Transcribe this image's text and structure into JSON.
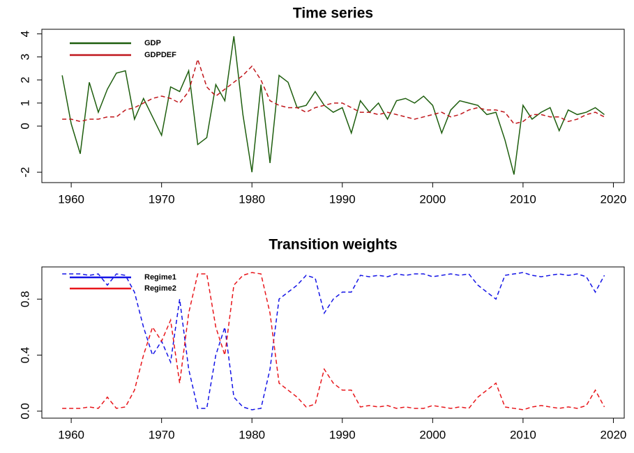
{
  "chart_data": [
    {
      "type": "line",
      "title": "Time series",
      "x": [
        1959,
        1960,
        1961,
        1962,
        1963,
        1964,
        1965,
        1966,
        1967,
        1968,
        1969,
        1970,
        1971,
        1972,
        1973,
        1974,
        1975,
        1976,
        1977,
        1978,
        1979,
        1980,
        1981,
        1982,
        1983,
        1984,
        1985,
        1986,
        1987,
        1988,
        1989,
        1990,
        1991,
        1992,
        1993,
        1994,
        1995,
        1996,
        1997,
        1998,
        1999,
        2000,
        2001,
        2002,
        2003,
        2004,
        2005,
        2006,
        2007,
        2008,
        2009,
        2010,
        2011,
        2012,
        2013,
        2014,
        2015,
        2016,
        2017,
        2018,
        2019
      ],
      "xlim": [
        1956.75,
        2021.2
      ],
      "xticks": [
        1960,
        1970,
        1980,
        1990,
        2000,
        2010,
        2020
      ],
      "ylim": [
        -2.45,
        4.2
      ],
      "yticks": [
        -2,
        0,
        1,
        2,
        3,
        4
      ],
      "legend": "top-left",
      "series": [
        {
          "name": "GDP",
          "color": "#1e5e0e",
          "line_style": "solid",
          "values": [
            2.2,
            0.1,
            -1.2,
            1.9,
            0.6,
            1.6,
            2.3,
            2.4,
            0.3,
            1.2,
            0.4,
            -0.4,
            1.7,
            1.5,
            2.4,
            -0.8,
            -0.5,
            1.8,
            1.1,
            3.9,
            0.5,
            -2.0,
            1.8,
            -1.6,
            2.2,
            1.9,
            0.8,
            0.9,
            1.5,
            0.9,
            0.6,
            0.8,
            -0.3,
            1.1,
            0.6,
            1.0,
            0.3,
            1.1,
            1.2,
            1.0,
            1.3,
            0.9,
            -0.3,
            0.7,
            1.1,
            1.0,
            0.9,
            0.5,
            0.6,
            -0.6,
            -2.1,
            0.9,
            0.3,
            0.6,
            0.8,
            -0.2,
            0.7,
            0.5,
            0.6,
            0.8,
            0.5
          ]
        },
        {
          "name": "GDPDEF",
          "color": "#c0161b",
          "line_style": "dashed",
          "values": [
            0.3,
            0.3,
            0.2,
            0.3,
            0.3,
            0.4,
            0.4,
            0.7,
            0.8,
            1.0,
            1.2,
            1.3,
            1.2,
            1.0,
            1.5,
            2.9,
            1.7,
            1.3,
            1.6,
            1.9,
            2.2,
            2.6,
            2.0,
            1.1,
            0.9,
            0.8,
            0.8,
            0.6,
            0.8,
            0.9,
            1.0,
            1.0,
            0.8,
            0.6,
            0.6,
            0.5,
            0.6,
            0.5,
            0.4,
            0.3,
            0.4,
            0.5,
            0.6,
            0.4,
            0.5,
            0.7,
            0.8,
            0.7,
            0.7,
            0.6,
            0.1,
            0.2,
            0.5,
            0.5,
            0.4,
            0.4,
            0.2,
            0.3,
            0.5,
            0.6,
            0.4
          ]
        }
      ]
    },
    {
      "type": "line",
      "title": "Transition weights",
      "x": [
        1959,
        1960,
        1961,
        1962,
        1963,
        1964,
        1965,
        1966,
        1967,
        1968,
        1969,
        1970,
        1971,
        1972,
        1973,
        1974,
        1975,
        1976,
        1977,
        1978,
        1979,
        1980,
        1981,
        1982,
        1983,
        1984,
        1985,
        1986,
        1987,
        1988,
        1989,
        1990,
        1991,
        1992,
        1993,
        1994,
        1995,
        1996,
        1997,
        1998,
        1999,
        2000,
        2001,
        2002,
        2003,
        2004,
        2005,
        2006,
        2007,
        2008,
        2009,
        2010,
        2011,
        2012,
        2013,
        2014,
        2015,
        2016,
        2017,
        2018,
        2019
      ],
      "xlim": [
        1956.75,
        2021.2
      ],
      "xticks": [
        1960,
        1970,
        1980,
        1990,
        2000,
        2010,
        2020
      ],
      "ylim": [
        -0.05,
        1.03
      ],
      "yticks": [
        {
          "value": 0,
          "label": "0.0"
        },
        0.4,
        0.8
      ],
      "legend": "top-left",
      "series": [
        {
          "name": "Regime1",
          "color": "#1414e6",
          "line_style": "dashed",
          "values": [
            0.98,
            0.98,
            0.98,
            0.97,
            0.98,
            0.9,
            0.98,
            0.97,
            0.85,
            0.6,
            0.4,
            0.5,
            0.35,
            0.8,
            0.3,
            0.02,
            0.02,
            0.4,
            0.6,
            0.1,
            0.03,
            0.01,
            0.02,
            0.3,
            0.8,
            0.85,
            0.9,
            0.97,
            0.95,
            0.7,
            0.8,
            0.85,
            0.85,
            0.97,
            0.96,
            0.97,
            0.96,
            0.98,
            0.97,
            0.98,
            0.98,
            0.96,
            0.97,
            0.98,
            0.97,
            0.98,
            0.9,
            0.85,
            0.8,
            0.97,
            0.98,
            0.99,
            0.97,
            0.96,
            0.97,
            0.98,
            0.97,
            0.98,
            0.96,
            0.85,
            0.97
          ]
        },
        {
          "name": "Regime2",
          "color": "#e8161b",
          "line_style": "dashed",
          "values": [
            0.02,
            0.02,
            0.02,
            0.03,
            0.02,
            0.1,
            0.02,
            0.03,
            0.15,
            0.4,
            0.6,
            0.5,
            0.65,
            0.2,
            0.7,
            0.98,
            0.98,
            0.6,
            0.4,
            0.9,
            0.97,
            0.99,
            0.98,
            0.7,
            0.2,
            0.15,
            0.1,
            0.03,
            0.05,
            0.3,
            0.2,
            0.15,
            0.15,
            0.03,
            0.04,
            0.03,
            0.04,
            0.02,
            0.03,
            0.02,
            0.02,
            0.04,
            0.03,
            0.02,
            0.03,
            0.02,
            0.1,
            0.15,
            0.2,
            0.03,
            0.02,
            0.01,
            0.03,
            0.04,
            0.03,
            0.02,
            0.03,
            0.02,
            0.04,
            0.15,
            0.03
          ]
        }
      ]
    }
  ]
}
